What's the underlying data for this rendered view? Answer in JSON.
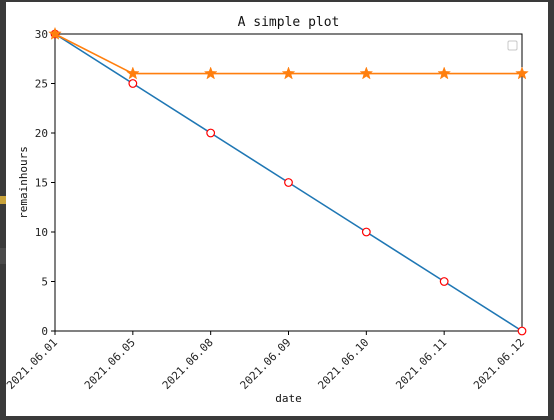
{
  "chart_data": {
    "type": "line",
    "title": "A simple plot",
    "xlabel": "date",
    "ylabel": "remainhours",
    "categories": [
      "2021.06.01",
      "2021.06.05",
      "2021.06.08",
      "2021.06.09",
      "2021.06.10",
      "2021.06.11",
      "2021.06.12"
    ],
    "ylim": [
      0,
      30
    ],
    "yticks": [
      0,
      5,
      10,
      15,
      20,
      25,
      30
    ],
    "grid": false,
    "legend": "top-right",
    "series": [
      {
        "values": [
          30,
          25,
          20,
          15,
          10,
          5,
          0
        ],
        "color": "#1f77b4",
        "marker": "open-circle",
        "marker_color": "#ff0000"
      },
      {
        "values": [
          30,
          26,
          26,
          26,
          26,
          26,
          26
        ],
        "color": "#ff7f0e",
        "marker": "star",
        "marker_color": "#ff7f0e"
      }
    ]
  }
}
